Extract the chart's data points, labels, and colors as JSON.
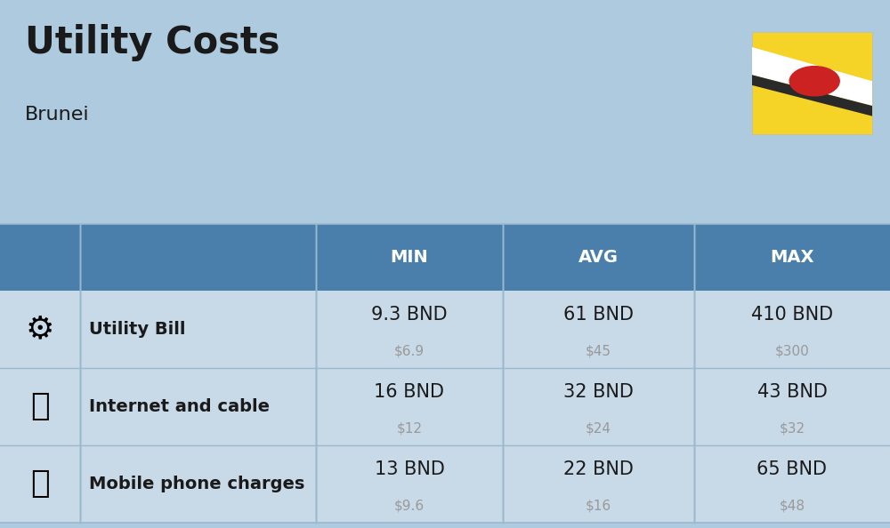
{
  "title": "Utility Costs",
  "subtitle": "Brunei",
  "background_color": "#aecade",
  "header_bg_color": "#4a7fac",
  "header_text_color": "#ffffff",
  "row_bg_color": "#c8d9e8",
  "col_header_labels": [
    "MIN",
    "AVG",
    "MAX"
  ],
  "rows": [
    {
      "label": "Utility Bill",
      "min_bnd": "9.3 BND",
      "min_usd": "$6.9",
      "avg_bnd": "61 BND",
      "avg_usd": "$45",
      "max_bnd": "410 BND",
      "max_usd": "$300"
    },
    {
      "label": "Internet and cable",
      "min_bnd": "16 BND",
      "min_usd": "$12",
      "avg_bnd": "32 BND",
      "avg_usd": "$24",
      "max_bnd": "43 BND",
      "max_usd": "$32"
    },
    {
      "label": "Mobile phone charges",
      "min_bnd": "13 BND",
      "min_usd": "$9.6",
      "avg_bnd": "22 BND",
      "avg_usd": "$16",
      "max_bnd": "65 BND",
      "max_usd": "$48"
    }
  ],
  "text_color_main": "#1a1a1a",
  "text_color_usd": "#999999",
  "divider_color": "#9ab8ce",
  "flag_yellow": "#f5d327",
  "flag_white": "#ffffff",
  "flag_black": "#2a2a2a",
  "flag_red": "#cc2222",
  "title_fontsize": 30,
  "subtitle_fontsize": 16,
  "header_fontsize": 14,
  "label_fontsize": 14,
  "value_fontsize": 15,
  "usd_fontsize": 11
}
